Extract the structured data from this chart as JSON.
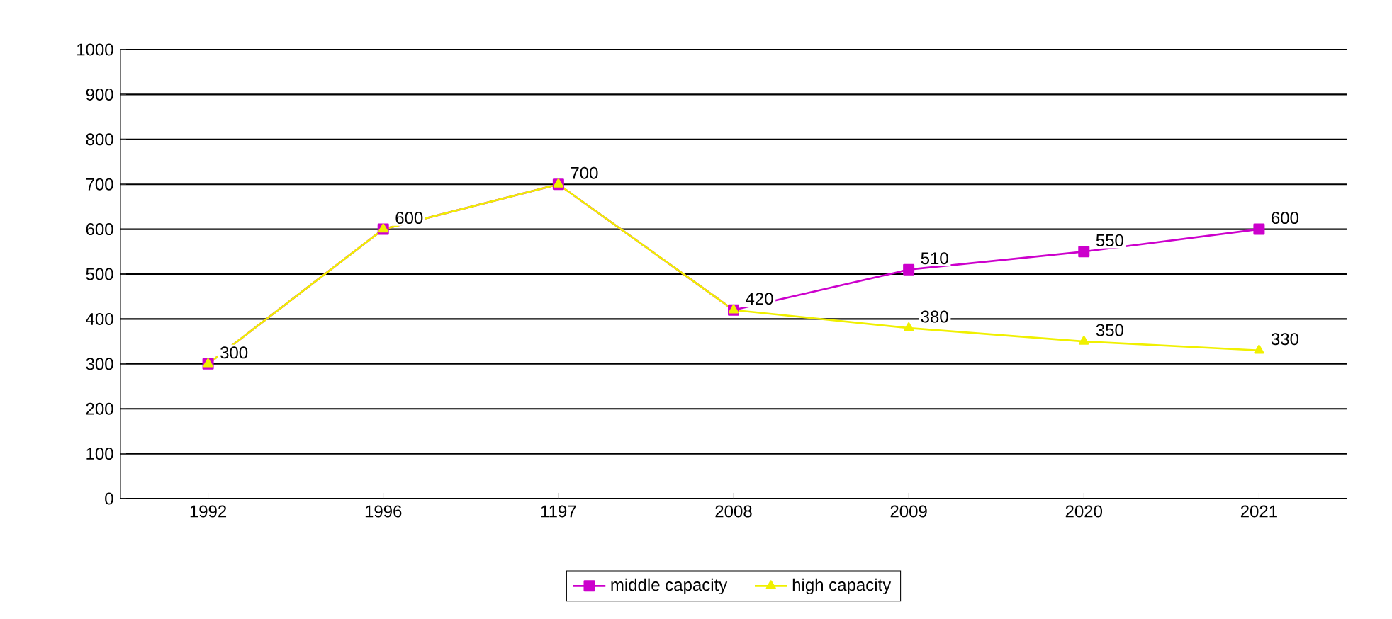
{
  "chart_data": {
    "type": "line",
    "categories": [
      "1992",
      "1996",
      "1197",
      "2008",
      "2009",
      "2020",
      "2021"
    ],
    "series": [
      {
        "name": "middle capacity",
        "color": "#cc00cc",
        "marker": "square",
        "values": [
          300,
          600,
          700,
          420,
          510,
          550,
          600
        ],
        "value_labels": [
          "300",
          "600",
          "700",
          "420",
          "510",
          "550",
          "600"
        ]
      },
      {
        "name": "high capacity",
        "color": "#f0f000",
        "marker": "triangle",
        "values": [
          300,
          600,
          700,
          420,
          380,
          350,
          330
        ],
        "value_labels": [
          null,
          null,
          null,
          null,
          "380",
          "350",
          "330"
        ]
      }
    ],
    "ylim": [
      0,
      1000
    ],
    "yticks": [
      0,
      100,
      200,
      300,
      400,
      500,
      600,
      700,
      800,
      900,
      1000
    ],
    "grid": "y",
    "legend": "bottom"
  }
}
